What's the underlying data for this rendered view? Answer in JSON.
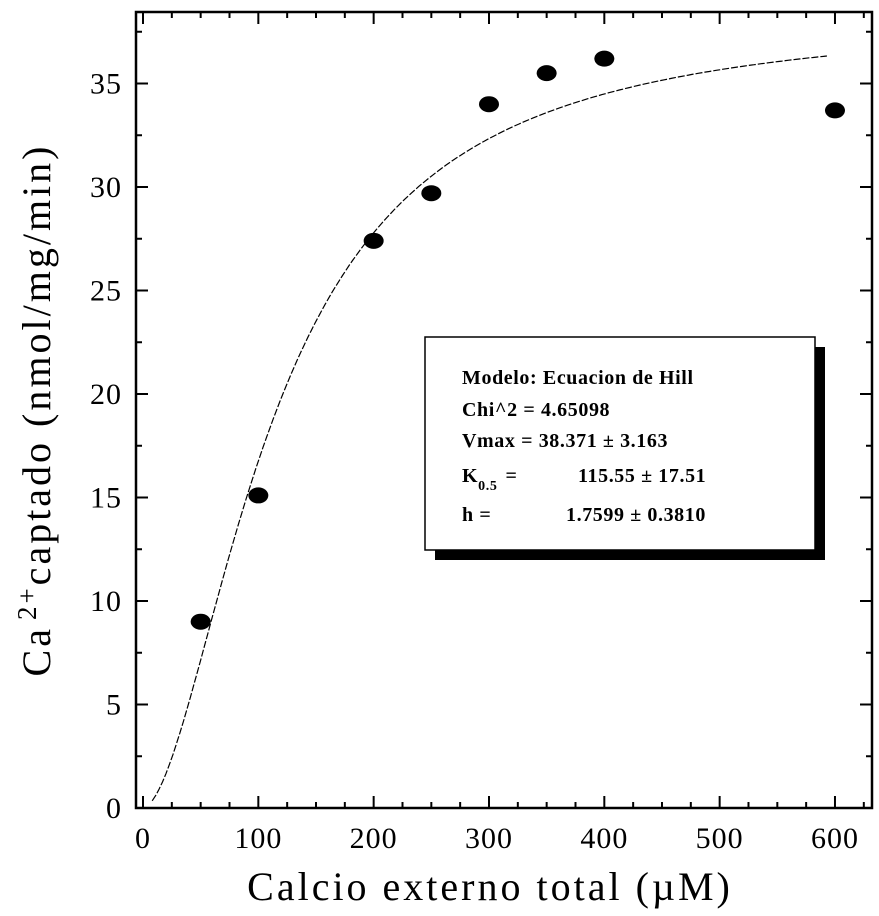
{
  "chart_data": {
    "type": "scatter",
    "xlabel": "Calcio externo total (µM)",
    "ylabel_parts": [
      "Ca",
      "2+",
      "captado (nmol/mg/min)"
    ],
    "xlim": [
      0,
      640
    ],
    "ylim": [
      0,
      38.5
    ],
    "x_ticks": [
      0,
      100,
      200,
      300,
      400,
      500,
      600
    ],
    "y_ticks": [
      0,
      5,
      10,
      15,
      20,
      25,
      30,
      35
    ],
    "x_tick_labels": [
      "0",
      "100",
      "200",
      "300",
      "400",
      "500",
      "600"
    ],
    "y_tick_labels": [
      "0",
      "5",
      "10",
      "15",
      "20",
      "25",
      "30",
      "35"
    ],
    "series": [
      {
        "x": [
          50,
          100,
          200,
          250,
          300,
          350,
          400,
          600
        ],
        "y": [
          9.0,
          15.1,
          27.4,
          29.7,
          34.0,
          35.5,
          36.2,
          33.7
        ]
      }
    ],
    "fit": {
      "model": "hill",
      "vmax": 38.371,
      "k05": 115.55,
      "h": 1.7599,
      "x_range": [
        8,
        595
      ]
    },
    "annotation": {
      "lines": [
        {
          "label": "Modelo: Ecuacion de Hill"
        },
        {
          "label": "Chi^2 = 4.65098"
        },
        {
          "label": "Vmax = 38.371 ±  3.163"
        },
        {
          "label": "K",
          "sub": "0.5",
          "after": "=",
          "value": "115.55 ±  17.51"
        },
        {
          "label": "h =",
          "value": "1.7599 ±  0.3810"
        }
      ]
    },
    "grid": false
  }
}
